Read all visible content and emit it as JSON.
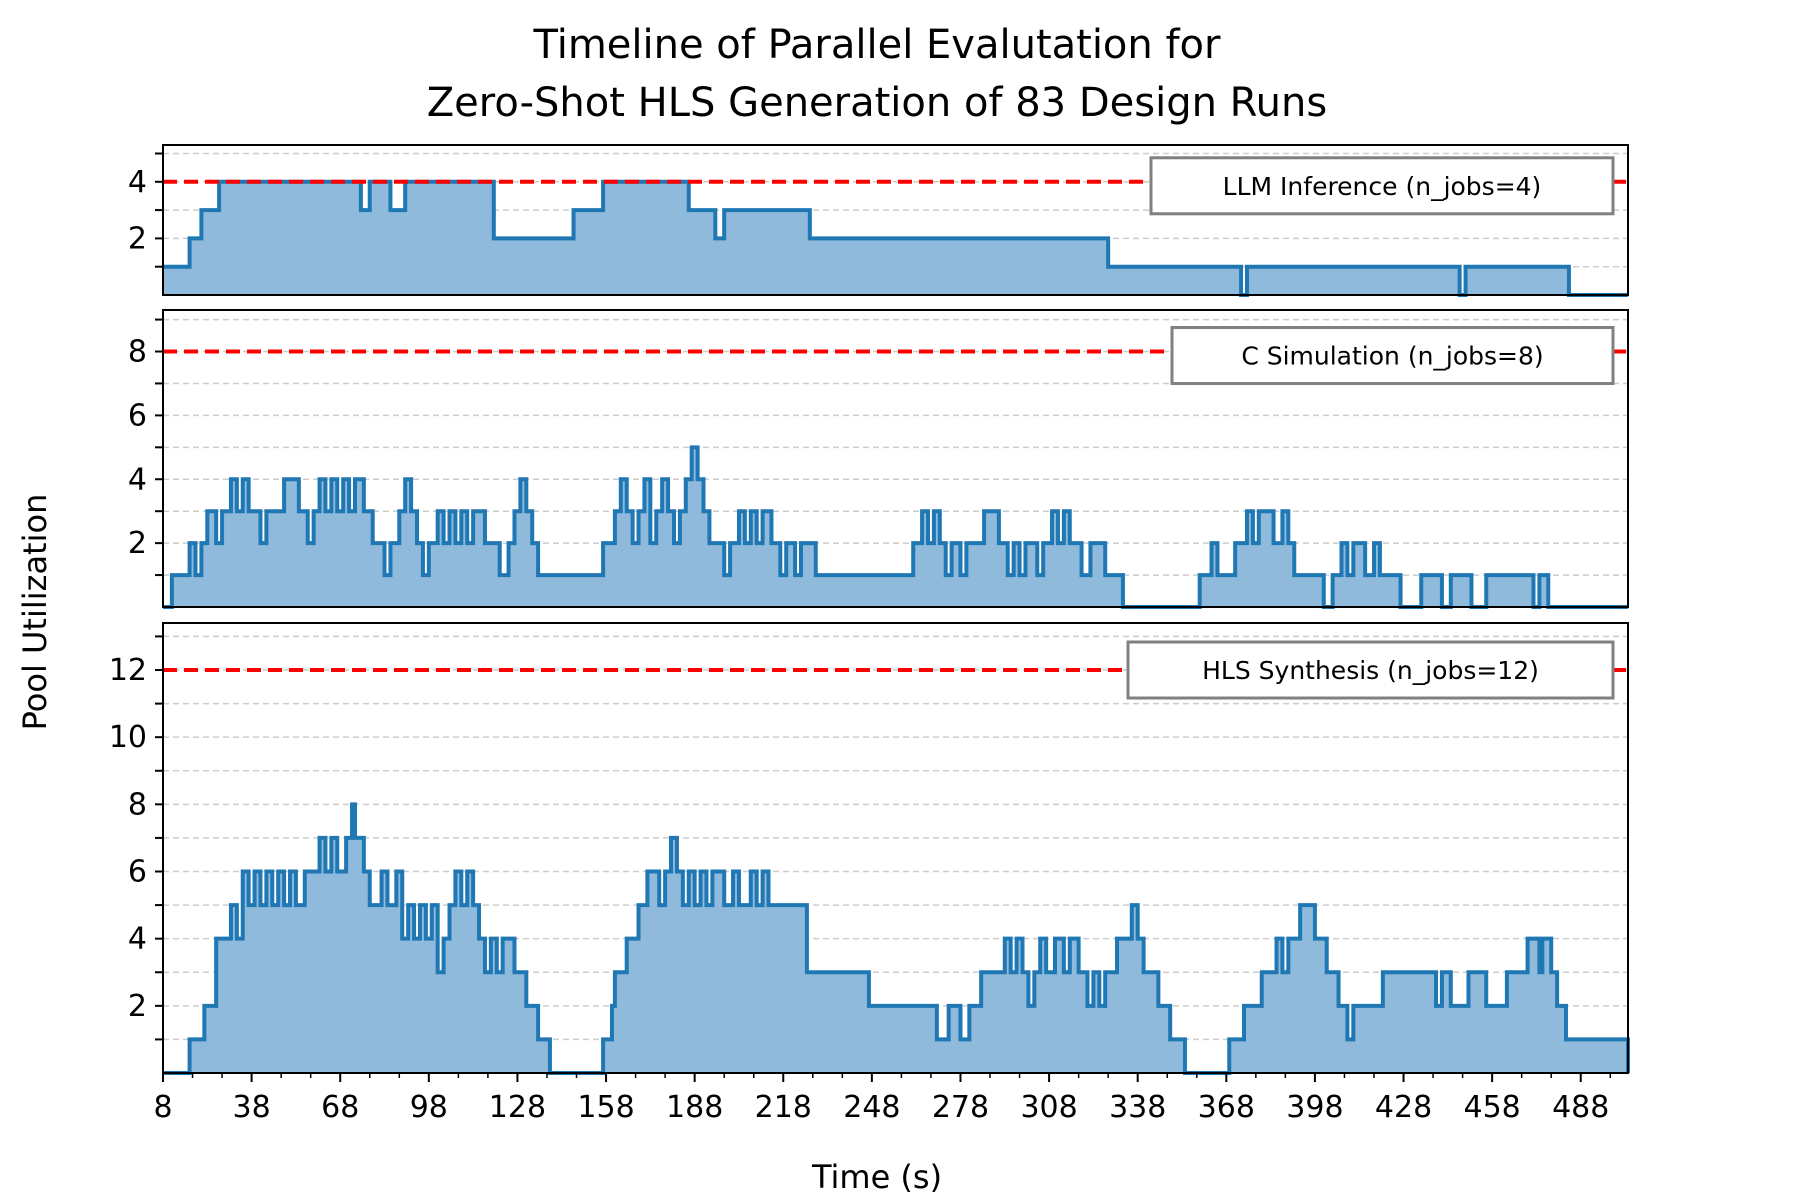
{
  "chart_data": {
    "type": "area",
    "title": "Timeline of Parallel Evalutation for\nZero-Shot HLS Generation of 83 Design Runs",
    "xlabel": "Time (s)",
    "ylabel": "Pool Utilization",
    "xlim": [
      8,
      504
    ],
    "xticks": [
      8,
      38,
      68,
      98,
      128,
      158,
      188,
      218,
      248,
      278,
      308,
      338,
      368,
      398,
      428,
      458,
      488
    ],
    "grid": "horizontal dashed",
    "legend_placement": "top-right",
    "colors": {
      "line": "#1f77b4",
      "fill": "#8fbadb",
      "limit": "#ff0000",
      "grid": "#cccccc"
    },
    "panels": [
      {
        "name": "LLM Inference (n_jobs=4)",
        "limit": 4,
        "ylim": [
          0,
          5.3
        ],
        "yticks": [
          2,
          4
        ],
        "steps": [
          [
            8,
            1
          ],
          [
            17,
            2
          ],
          [
            21,
            3
          ],
          [
            27,
            4
          ],
          [
            75,
            3
          ],
          [
            78,
            4
          ],
          [
            85,
            3
          ],
          [
            90,
            4
          ],
          [
            120,
            2
          ],
          [
            147,
            3
          ],
          [
            157,
            4
          ],
          [
            186,
            3
          ],
          [
            195,
            2
          ],
          [
            198,
            3
          ],
          [
            227,
            2
          ],
          [
            328,
            1
          ],
          [
            373,
            0
          ],
          [
            375,
            1
          ],
          [
            447,
            0
          ],
          [
            449,
            1
          ],
          [
            484,
            0
          ],
          [
            504,
            0
          ]
        ]
      },
      {
        "name": "C Simulation (n_jobs=8)",
        "limit": 8,
        "ylim": [
          0,
          9.3
        ],
        "yticks": [
          2,
          4,
          6,
          8
        ],
        "steps": [
          [
            8,
            0
          ],
          [
            11,
            1
          ],
          [
            17,
            2
          ],
          [
            19,
            1
          ],
          [
            21,
            2
          ],
          [
            23,
            3
          ],
          [
            26,
            2
          ],
          [
            28,
            3
          ],
          [
            31,
            4
          ],
          [
            33,
            3
          ],
          [
            35,
            4
          ],
          [
            37,
            3
          ],
          [
            41,
            2
          ],
          [
            43,
            3
          ],
          [
            49,
            4
          ],
          [
            54,
            3
          ],
          [
            57,
            2
          ],
          [
            59,
            3
          ],
          [
            61,
            4
          ],
          [
            63,
            3
          ],
          [
            65,
            4
          ],
          [
            67,
            3
          ],
          [
            69,
            4
          ],
          [
            71,
            3
          ],
          [
            73,
            4
          ],
          [
            76,
            3
          ],
          [
            79,
            2
          ],
          [
            83,
            1
          ],
          [
            85,
            2
          ],
          [
            88,
            3
          ],
          [
            90,
            4
          ],
          [
            92,
            3
          ],
          [
            94,
            2
          ],
          [
            96,
            1
          ],
          [
            98,
            2
          ],
          [
            101,
            3
          ],
          [
            103,
            2
          ],
          [
            105,
            3
          ],
          [
            107,
            2
          ],
          [
            109,
            3
          ],
          [
            111,
            2
          ],
          [
            113,
            3
          ],
          [
            117,
            2
          ],
          [
            122,
            1
          ],
          [
            125,
            2
          ],
          [
            127,
            3
          ],
          [
            129,
            4
          ],
          [
            131,
            3
          ],
          [
            133,
            2
          ],
          [
            135,
            1
          ],
          [
            157,
            2
          ],
          [
            161,
            3
          ],
          [
            163,
            4
          ],
          [
            165,
            3
          ],
          [
            167,
            2
          ],
          [
            169,
            3
          ],
          [
            171,
            4
          ],
          [
            173,
            2
          ],
          [
            175,
            3
          ],
          [
            177,
            4
          ],
          [
            179,
            3
          ],
          [
            181,
            2
          ],
          [
            183,
            3
          ],
          [
            185,
            4
          ],
          [
            187,
            5
          ],
          [
            189,
            4
          ],
          [
            191,
            3
          ],
          [
            193,
            2
          ],
          [
            198,
            1
          ],
          [
            200,
            2
          ],
          [
            203,
            3
          ],
          [
            205,
            2
          ],
          [
            207,
            3
          ],
          [
            209,
            2
          ],
          [
            211,
            3
          ],
          [
            214,
            2
          ],
          [
            217,
            1
          ],
          [
            219,
            2
          ],
          [
            222,
            1
          ],
          [
            224,
            2
          ],
          [
            229,
            1
          ],
          [
            262,
            2
          ],
          [
            265,
            3
          ],
          [
            267,
            2
          ],
          [
            269,
            3
          ],
          [
            271,
            2
          ],
          [
            273,
            1
          ],
          [
            275,
            2
          ],
          [
            278,
            1
          ],
          [
            280,
            2
          ],
          [
            286,
            3
          ],
          [
            291,
            2
          ],
          [
            294,
            1
          ],
          [
            296,
            2
          ],
          [
            298,
            1
          ],
          [
            300,
            2
          ],
          [
            304,
            1
          ],
          [
            306,
            2
          ],
          [
            309,
            3
          ],
          [
            311,
            2
          ],
          [
            313,
            3
          ],
          [
            315,
            2
          ],
          [
            319,
            1
          ],
          [
            322,
            2
          ],
          [
            327,
            1
          ],
          [
            333,
            0
          ],
          [
            359,
            1
          ],
          [
            363,
            2
          ],
          [
            365,
            1
          ],
          [
            371,
            2
          ],
          [
            375,
            3
          ],
          [
            377,
            2
          ],
          [
            379,
            3
          ],
          [
            384,
            2
          ],
          [
            387,
            3
          ],
          [
            389,
            2
          ],
          [
            391,
            1
          ],
          [
            401,
            0
          ],
          [
            404,
            1
          ],
          [
            407,
            2
          ],
          [
            409,
            1
          ],
          [
            411,
            2
          ],
          [
            415,
            1
          ],
          [
            418,
            2
          ],
          [
            420,
            1
          ],
          [
            427,
            0
          ],
          [
            434,
            1
          ],
          [
            441,
            0
          ],
          [
            444,
            1
          ],
          [
            451,
            0
          ],
          [
            456,
            1
          ],
          [
            472,
            0
          ],
          [
            474,
            1
          ],
          [
            477,
            0
          ],
          [
            504,
            0
          ]
        ]
      },
      {
        "name": "HLS Synthesis (n_jobs=12)",
        "limit": 12,
        "ylim": [
          0,
          13.4
        ],
        "yticks": [
          2,
          4,
          6,
          8,
          10,
          12
        ],
        "steps": [
          [
            8,
            0
          ],
          [
            17,
            1
          ],
          [
            22,
            2
          ],
          [
            26,
            4
          ],
          [
            31,
            5
          ],
          [
            33,
            4
          ],
          [
            35,
            6
          ],
          [
            37,
            5
          ],
          [
            39,
            6
          ],
          [
            41,
            5
          ],
          [
            43,
            6
          ],
          [
            45,
            5
          ],
          [
            47,
            6
          ],
          [
            49,
            5
          ],
          [
            51,
            6
          ],
          [
            53,
            5
          ],
          [
            56,
            6
          ],
          [
            61,
            7
          ],
          [
            63,
            6
          ],
          [
            65,
            7
          ],
          [
            67,
            6
          ],
          [
            70,
            7
          ],
          [
            72,
            8
          ],
          [
            73,
            7
          ],
          [
            76,
            6
          ],
          [
            78,
            5
          ],
          [
            82,
            6
          ],
          [
            84,
            5
          ],
          [
            87,
            6
          ],
          [
            89,
            4
          ],
          [
            91,
            5
          ],
          [
            93,
            4
          ],
          [
            95,
            5
          ],
          [
            97,
            4
          ],
          [
            99,
            5
          ],
          [
            101,
            3
          ],
          [
            103,
            4
          ],
          [
            105,
            5
          ],
          [
            107,
            6
          ],
          [
            109,
            5
          ],
          [
            111,
            6
          ],
          [
            113,
            5
          ],
          [
            115,
            4
          ],
          [
            117,
            3
          ],
          [
            119,
            4
          ],
          [
            121,
            3
          ],
          [
            123,
            4
          ],
          [
            127,
            3
          ],
          [
            131,
            2
          ],
          [
            135,
            1
          ],
          [
            139,
            0
          ],
          [
            157,
            1
          ],
          [
            160,
            2
          ],
          [
            161,
            3
          ],
          [
            165,
            4
          ],
          [
            169,
            5
          ],
          [
            172,
            6
          ],
          [
            176,
            5
          ],
          [
            178,
            6
          ],
          [
            180,
            7
          ],
          [
            182,
            6
          ],
          [
            184,
            5
          ],
          [
            186,
            6
          ],
          [
            188,
            5
          ],
          [
            190,
            6
          ],
          [
            192,
            5
          ],
          [
            194,
            6
          ],
          [
            198,
            5
          ],
          [
            201,
            6
          ],
          [
            203,
            5
          ],
          [
            207,
            6
          ],
          [
            209,
            5
          ],
          [
            211,
            6
          ],
          [
            213,
            5
          ],
          [
            226,
            3
          ],
          [
            247,
            2
          ],
          [
            270,
            1
          ],
          [
            274,
            2
          ],
          [
            278,
            1
          ],
          [
            281,
            2
          ],
          [
            285,
            3
          ],
          [
            293,
            4
          ],
          [
            295,
            3
          ],
          [
            297,
            4
          ],
          [
            299,
            3
          ],
          [
            301,
            2
          ],
          [
            303,
            3
          ],
          [
            305,
            4
          ],
          [
            307,
            3
          ],
          [
            310,
            4
          ],
          [
            313,
            3
          ],
          [
            315,
            4
          ],
          [
            318,
            3
          ],
          [
            321,
            2
          ],
          [
            323,
            3
          ],
          [
            325,
            2
          ],
          [
            327,
            3
          ],
          [
            331,
            4
          ],
          [
            336,
            5
          ],
          [
            338,
            4
          ],
          [
            340,
            3
          ],
          [
            345,
            2
          ],
          [
            349,
            1
          ],
          [
            354,
            0
          ],
          [
            369,
            1
          ],
          [
            374,
            2
          ],
          [
            380,
            3
          ],
          [
            385,
            4
          ],
          [
            387,
            3
          ],
          [
            389,
            4
          ],
          [
            393,
            5
          ],
          [
            398,
            4
          ],
          [
            402,
            3
          ],
          [
            406,
            2
          ],
          [
            409,
            1
          ],
          [
            411,
            2
          ],
          [
            421,
            3
          ],
          [
            439,
            2
          ],
          [
            441,
            3
          ],
          [
            444,
            2
          ],
          [
            450,
            3
          ],
          [
            456,
            2
          ],
          [
            463,
            3
          ],
          [
            470,
            4
          ],
          [
            474,
            3
          ],
          [
            475,
            4
          ],
          [
            478,
            3
          ],
          [
            480,
            2
          ],
          [
            483,
            1
          ],
          [
            504,
            0
          ]
        ]
      }
    ]
  }
}
